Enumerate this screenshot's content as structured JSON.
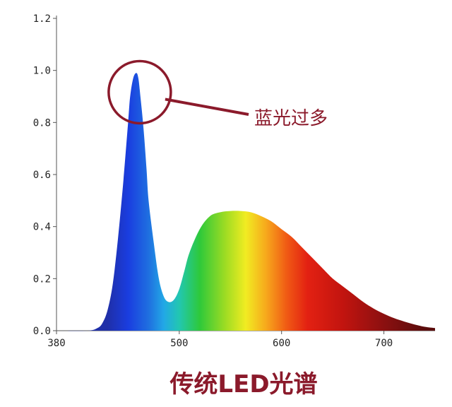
{
  "chart_data": {
    "type": "area",
    "title": "传统LED光谱",
    "xlabel": "",
    "ylabel": "",
    "xlim": [
      380,
      750
    ],
    "ylim": [
      0,
      1.2
    ],
    "grid": false,
    "x_ticks": [
      380,
      500,
      600,
      700
    ],
    "x_tick_labels": [
      "380",
      "500",
      "600",
      "700"
    ],
    "y_ticks": [
      0,
      0.2,
      0.4,
      0.6,
      0.8,
      1.0,
      1.2
    ],
    "y_tick_labels": [
      "0.0",
      "0.2",
      "0.4",
      "0.6",
      "0.8",
      "1.0",
      "1.2"
    ],
    "series": [
      {
        "x": [
          380,
          410,
          420,
          425,
          430,
          435,
          440,
          445,
          450,
          452,
          455,
          458,
          460,
          462,
          465,
          468,
          470,
          475,
          480,
          485,
          490,
          495,
          500,
          505,
          510,
          520,
          530,
          540,
          550,
          560,
          570,
          580,
          590,
          600,
          610,
          620,
          630,
          640,
          650,
          660,
          670,
          680,
          690,
          700,
          710,
          720,
          730,
          740,
          750
        ],
        "y": [
          0,
          0,
          0.01,
          0.03,
          0.08,
          0.18,
          0.35,
          0.56,
          0.8,
          0.9,
          0.97,
          0.99,
          0.97,
          0.9,
          0.78,
          0.62,
          0.5,
          0.34,
          0.2,
          0.13,
          0.11,
          0.12,
          0.16,
          0.23,
          0.3,
          0.39,
          0.44,
          0.455,
          0.46,
          0.46,
          0.455,
          0.44,
          0.42,
          0.39,
          0.36,
          0.32,
          0.28,
          0.24,
          0.2,
          0.17,
          0.14,
          0.11,
          0.085,
          0.065,
          0.048,
          0.035,
          0.024,
          0.015,
          0.01
        ]
      }
    ],
    "annotations": [
      {
        "text": "蓝光过多",
        "target": {
          "x": 460,
          "y": 0.93
        }
      }
    ],
    "fill_gradient": [
      {
        "x": 430,
        "color": "#1f2fa8"
      },
      {
        "x": 450,
        "color": "#1a3de0"
      },
      {
        "x": 470,
        "color": "#1f6fe0"
      },
      {
        "x": 485,
        "color": "#22a8e6"
      },
      {
        "x": 500,
        "color": "#22c7b0"
      },
      {
        "x": 520,
        "color": "#2ec93a"
      },
      {
        "x": 545,
        "color": "#9edc23"
      },
      {
        "x": 565,
        "color": "#f1ec22"
      },
      {
        "x": 585,
        "color": "#f7a81c"
      },
      {
        "x": 605,
        "color": "#f05a14"
      },
      {
        "x": 625,
        "color": "#e32112"
      },
      {
        "x": 660,
        "color": "#c2140f"
      },
      {
        "x": 700,
        "color": "#8b1010"
      },
      {
        "x": 740,
        "color": "#5a0c0c"
      }
    ],
    "colors": {
      "annotation": "#8b1a2b",
      "axis": "#555555"
    }
  }
}
